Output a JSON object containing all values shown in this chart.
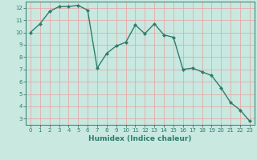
{
  "x": [
    0,
    1,
    2,
    3,
    4,
    5,
    6,
    7,
    8,
    9,
    10,
    11,
    12,
    13,
    14,
    15,
    16,
    17,
    18,
    19,
    20,
    21,
    22,
    23
  ],
  "y": [
    10.0,
    10.7,
    11.7,
    12.1,
    12.1,
    12.2,
    11.8,
    7.1,
    8.3,
    8.9,
    9.2,
    10.6,
    9.9,
    10.7,
    9.8,
    9.6,
    7.0,
    7.1,
    6.8,
    6.5,
    5.5,
    4.3,
    3.7,
    2.8
  ],
  "line_color": "#2e7d6e",
  "marker": "D",
  "marker_size": 2.0,
  "bg_color": "#c8e8e0",
  "grid_color": "#e8a0a0",
  "xlabel": "Humidex (Indice chaleur)",
  "xlim": [
    -0.5,
    23.5
  ],
  "ylim": [
    2.5,
    12.5
  ],
  "yticks": [
    3,
    4,
    5,
    6,
    7,
    8,
    9,
    10,
    11,
    12
  ],
  "xticks": [
    0,
    1,
    2,
    3,
    4,
    5,
    6,
    7,
    8,
    9,
    10,
    11,
    12,
    13,
    14,
    15,
    16,
    17,
    18,
    19,
    20,
    21,
    22,
    23
  ],
  "tick_fontsize": 5.0,
  "label_fontsize": 6.5,
  "line_width": 1.0
}
